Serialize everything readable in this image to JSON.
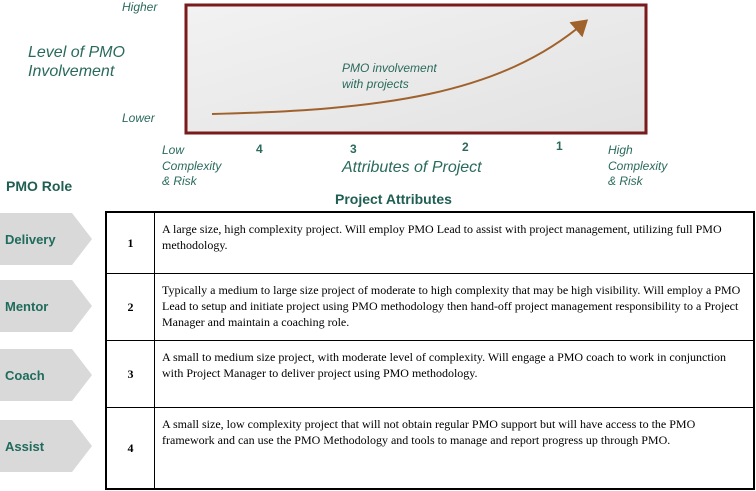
{
  "diagram": {
    "y_axis": {
      "title": [
        "Level of PMO",
        "Involvement"
      ],
      "high": "Higher",
      "low": "Lower"
    },
    "curve_label": [
      "PMO involvement",
      "with projects"
    ],
    "x_axis": {
      "title": "Attributes of Project",
      "low": [
        "Low",
        "Complexity",
        "& Risk"
      ],
      "high": [
        "High",
        "Complexity",
        "& Risk"
      ],
      "levels": [
        "4",
        "3",
        "2",
        "1"
      ]
    }
  },
  "roles_header": "PMO Role",
  "table": {
    "title": "Project Attributes",
    "rows": [
      {
        "role": "Delivery",
        "level": "1",
        "description": "A large size, high complexity project. Will employ PMO Lead to assist with project management,  utilizing full PMO methodology."
      },
      {
        "role": "Mentor",
        "level": "2",
        "description": "Typically a medium to large size project of moderate to high complexity that may be high visibility. Will employ a PMO Lead to setup and initiate project using PMO methodology then hand-off project management responsibility to a Project Manager and maintain a coaching role."
      },
      {
        "role": "Coach",
        "level": "3",
        "description": "A small to medium size project, with moderate level of complexity. Will engage a PMO coach to work in conjunction with Project Manager to deliver project using PMO methodology."
      },
      {
        "role": "Assist",
        "level": "4",
        "description": "A small size, low complexity project that will not obtain regular PMO support but will have access to the PMO framework and can use the PMO Methodology and tools to manage and report progress up through PMO."
      }
    ]
  }
}
